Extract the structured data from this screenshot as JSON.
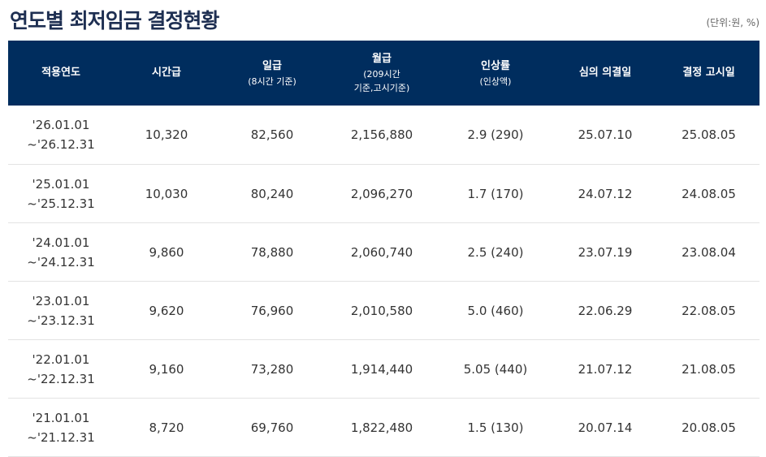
{
  "title": "연도별 최저임금 결정현황",
  "unit_note": "(단위:원, %)",
  "table": {
    "headers": [
      {
        "main": "적용연도",
        "sub": []
      },
      {
        "main": "시간급",
        "sub": []
      },
      {
        "main": "일급",
        "sub": [
          "(8시간 기준)"
        ]
      },
      {
        "main": "월급",
        "sub": [
          "(209시간",
          "기준,고시기준)"
        ]
      },
      {
        "main": "인상률",
        "sub": [
          "(인상액)"
        ]
      },
      {
        "main": "심의",
        "main2": "의결일",
        "sub": []
      },
      {
        "main": "결정",
        "main2": "고시일",
        "sub": []
      }
    ],
    "rows": [
      {
        "period_start": "'26.01.01",
        "period_end": "~'26.12.31",
        "hourly": "10,320",
        "daily": "82,560",
        "monthly": "2,156,880",
        "increase": "2.9 (290)",
        "review_date": "25.07.10",
        "notice_date": "25.08.05"
      },
      {
        "period_start": "'25.01.01",
        "period_end": "~'25.12.31",
        "hourly": "10,030",
        "daily": "80,240",
        "monthly": "2,096,270",
        "increase": "1.7 (170)",
        "review_date": "24.07.12",
        "notice_date": "24.08.05"
      },
      {
        "period_start": "'24.01.01",
        "period_end": "~'24.12.31",
        "hourly": "9,860",
        "daily": "78,880",
        "monthly": "2,060,740",
        "increase": "2.5 (240)",
        "review_date": "23.07.19",
        "notice_date": "23.08.04"
      },
      {
        "period_start": "'23.01.01",
        "period_end": "~'23.12.31",
        "hourly": "9,620",
        "daily": "76,960",
        "monthly": "2,010,580",
        "increase": "5.0 (460)",
        "review_date": "22.06.29",
        "notice_date": "22.08.05"
      },
      {
        "period_start": "'22.01.01",
        "period_end": "~'22.12.31",
        "hourly": "9,160",
        "daily": "73,280",
        "monthly": "1,914,440",
        "increase": "5.05 (440)",
        "review_date": "21.07.12",
        "notice_date": "21.08.05"
      },
      {
        "period_start": "'21.01.01",
        "period_end": "~'21.12.31",
        "hourly": "8,720",
        "daily": "69,760",
        "monthly": "1,822,480",
        "increase": "1.5 (130)",
        "review_date": "20.07.14",
        "notice_date": "20.08.05"
      }
    ]
  }
}
